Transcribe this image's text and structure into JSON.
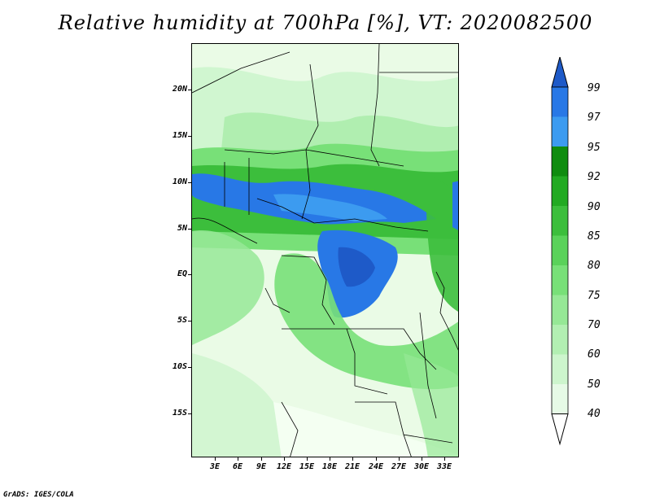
{
  "title": "Relative humidity at 700hPa [%], VT: 2020082500",
  "lat_labels": [
    "20N",
    "15N",
    "10N",
    "5N",
    "EQ",
    "5S",
    "10S",
    "15S"
  ],
  "lon_labels": [
    "3E",
    "6E",
    "9E",
    "12E",
    "15E",
    "18E",
    "21E",
    "24E",
    "27E",
    "30E",
    "33E"
  ],
  "colorbar": {
    "levels": [
      "40",
      "50",
      "60",
      "70",
      "75",
      "80",
      "85",
      "90",
      "92",
      "95",
      "97",
      "99"
    ],
    "colors": [
      "#ffffff",
      "#e6fae6",
      "#cdf5cd",
      "#b2efb2",
      "#96e896",
      "#78e078",
      "#5ad25a",
      "#3cbe3c",
      "#22aa22",
      "#0f8c0f",
      "#3c9bf0",
      "#2878e6",
      "#1e5ac8"
    ]
  },
  "footer": "GrADS: IGES/COLA"
}
